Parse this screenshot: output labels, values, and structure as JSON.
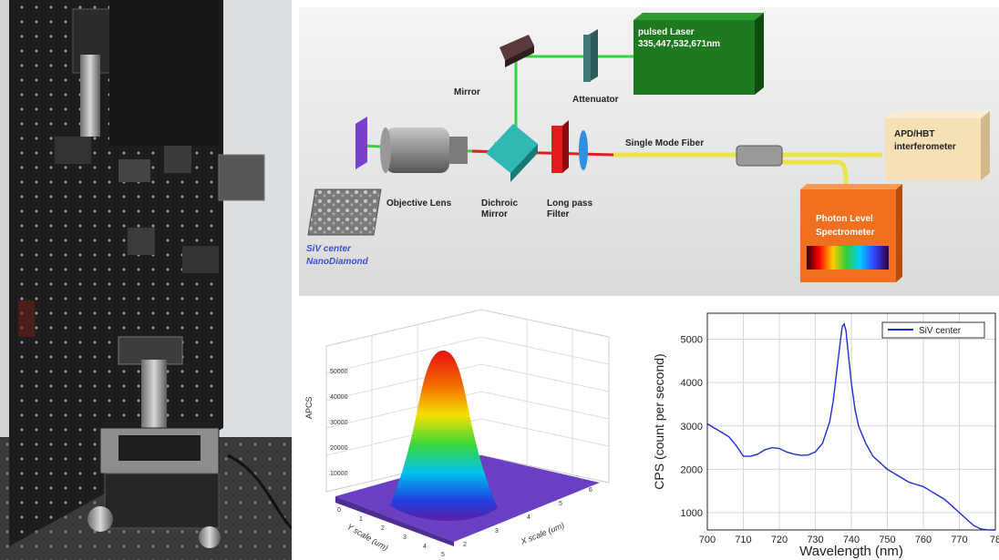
{
  "schematic": {
    "laser_label_line1": "pulsed Laser",
    "laser_label_line2": "335,447,532,671nm",
    "mirror": "Mirror",
    "attenuator": "Attenuator",
    "single_mode_fiber": "Single Mode Fiber",
    "apd_line1": "APD/HBT",
    "apd_line2": "interferometer",
    "objective": "Objective Lens",
    "dichroic_line1": "Dichroic",
    "dichroic_line2": "Mirror",
    "longpass_line1": "Long pass",
    "longpass_line2": "Filter",
    "spectrometer_line1": "Photon Level",
    "spectrometer_line2": "Spectrometer",
    "siv_line1": "SiV center",
    "siv_line2": "NanoDiamond",
    "colors": {
      "laser": "#1f7a1f",
      "apd": "#f6e0b5",
      "spectrometer": "#f07020",
      "siv_text": "#3b4fd8"
    }
  },
  "surface_plot": {
    "zlabel": "APCS",
    "xlabel": "X scale (um)",
    "ylabel": "Y scale (um)",
    "z_ticks": [
      "50000",
      "40000",
      "30000",
      "20000",
      "10000"
    ],
    "x_ticks": [
      "2",
      "3",
      "4",
      "5",
      "6"
    ],
    "y_ticks": [
      "0",
      "1",
      "2",
      "3",
      "4",
      "5"
    ]
  },
  "chart_data": {
    "type": "line",
    "title": "",
    "xlabel": "Wavelength (nm)",
    "ylabel": "CPS (count per second)",
    "xlim": [
      700,
      780
    ],
    "ylim": [
      600,
      5600
    ],
    "x_ticks": [
      "700",
      "710",
      "720",
      "730",
      "740",
      "750",
      "760",
      "770",
      "78"
    ],
    "y_ticks": [
      "1000",
      "2000",
      "3000",
      "4000",
      "5000"
    ],
    "grid": true,
    "legend_position": "top-right",
    "series": [
      {
        "name": "SiV center",
        "color": "#1c2fd6",
        "x": [
          700,
          703,
          706,
          708,
          710,
          712,
          714,
          716,
          718,
          720,
          722,
          724,
          726,
          728,
          730,
          732,
          734,
          735,
          736,
          737,
          737.5,
          738,
          738.5,
          739,
          740,
          741,
          742,
          744,
          746,
          748,
          750,
          752,
          754,
          756,
          758,
          760,
          762,
          764,
          766,
          768,
          770,
          772,
          774,
          776,
          778,
          780
        ],
        "values": [
          3050,
          2900,
          2750,
          2550,
          2300,
          2300,
          2350,
          2450,
          2500,
          2480,
          2400,
          2350,
          2320,
          2330,
          2400,
          2600,
          3100,
          3600,
          4300,
          5000,
          5300,
          5350,
          5200,
          4800,
          4000,
          3400,
          3000,
          2600,
          2300,
          2150,
          2000,
          1900,
          1800,
          1700,
          1650,
          1600,
          1500,
          1400,
          1300,
          1150,
          1000,
          850,
          700,
          620,
          600,
          600
        ]
      }
    ]
  }
}
